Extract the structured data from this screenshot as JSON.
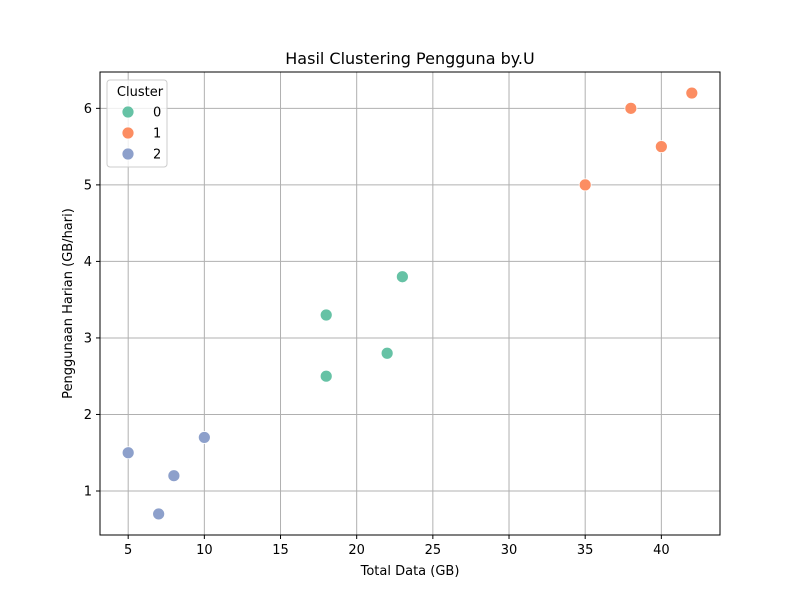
{
  "chart_data": {
    "type": "scatter",
    "title": "Hasil Clustering Pengguna by.U",
    "xlabel": "Total Data (GB)",
    "ylabel": "Penggunaan Harian (GB/hari)",
    "xlim": [
      3.15,
      43.85
    ],
    "ylim": [
      0.425,
      6.475
    ],
    "xticks": [
      5,
      10,
      15,
      20,
      25,
      30,
      35,
      40
    ],
    "yticks": [
      1,
      2,
      3,
      4,
      5,
      6
    ],
    "grid": true,
    "legend": {
      "title": "Cluster",
      "placement": "top-left"
    },
    "series": [
      {
        "name": "0",
        "color": "#66c2a5",
        "points": [
          {
            "x": 18,
            "y": 3.3
          },
          {
            "x": 23,
            "y": 3.8
          },
          {
            "x": 22,
            "y": 2.8
          },
          {
            "x": 18,
            "y": 2.5
          }
        ]
      },
      {
        "name": "1",
        "color": "#fc8d62",
        "points": [
          {
            "x": 35,
            "y": 5.0
          },
          {
            "x": 38,
            "y": 6.0
          },
          {
            "x": 40,
            "y": 5.5
          },
          {
            "x": 42,
            "y": 6.2
          }
        ]
      },
      {
        "name": "2",
        "color": "#8da0cb",
        "points": [
          {
            "x": 5,
            "y": 1.5
          },
          {
            "x": 7,
            "y": 0.7
          },
          {
            "x": 8,
            "y": 1.2
          },
          {
            "x": 10,
            "y": 1.7
          }
        ]
      }
    ]
  }
}
